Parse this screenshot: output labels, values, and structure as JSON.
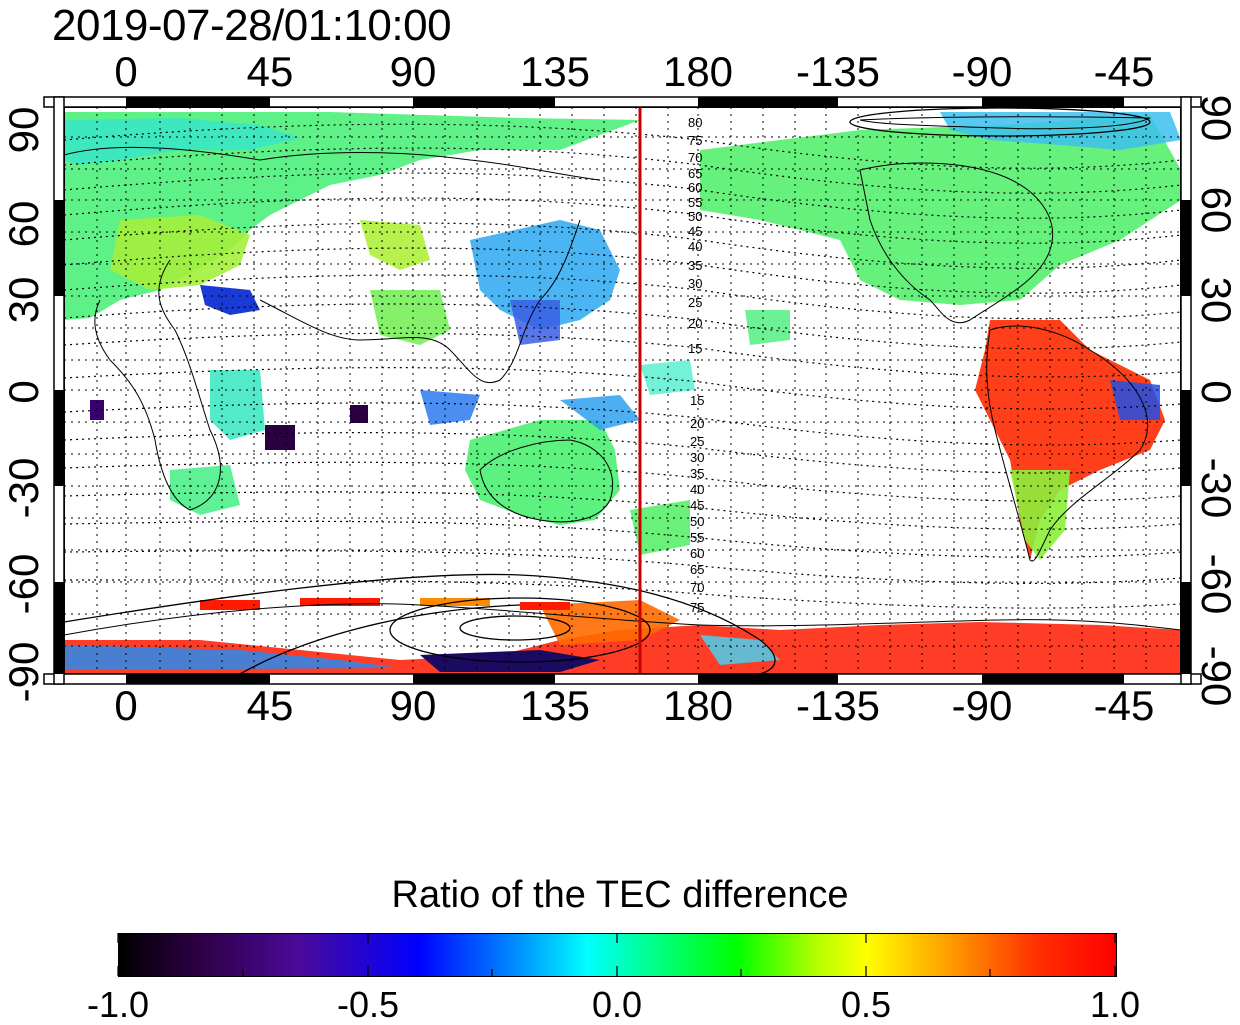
{
  "timestamp": "2019-07-28/01:10:00",
  "map": {
    "lon_ticks": [
      "0",
      "45",
      "90",
      "135",
      "180",
      "-135",
      "-90",
      "-45"
    ],
    "lat_ticks": [
      "90",
      "60",
      "30",
      "0",
      "-30",
      "-60",
      "-90"
    ],
    "meridian_marker": {
      "longitude": 163,
      "color": "#cc0000"
    },
    "contours_north": [
      "80",
      "75",
      "70",
      "65",
      "60",
      "55",
      "50",
      "45",
      "40",
      "35",
      "30",
      "25",
      "20",
      "15"
    ],
    "contours_south": [
      "15",
      "20",
      "25",
      "30",
      "35",
      "40",
      "45",
      "50",
      "55",
      "60",
      "65",
      "70",
      "75"
    ]
  },
  "colorbar": {
    "title": "Ratio of the TEC difference",
    "ticks": [
      "-1.0",
      "-0.5",
      "0.0",
      "0.5",
      "1.0"
    ],
    "range": [
      -1.0,
      1.0
    ],
    "colors": [
      "#000000",
      "#4a0a9a",
      "#0000ff",
      "#00ffff",
      "#00ff00",
      "#ffff00",
      "#ff0000"
    ]
  }
}
